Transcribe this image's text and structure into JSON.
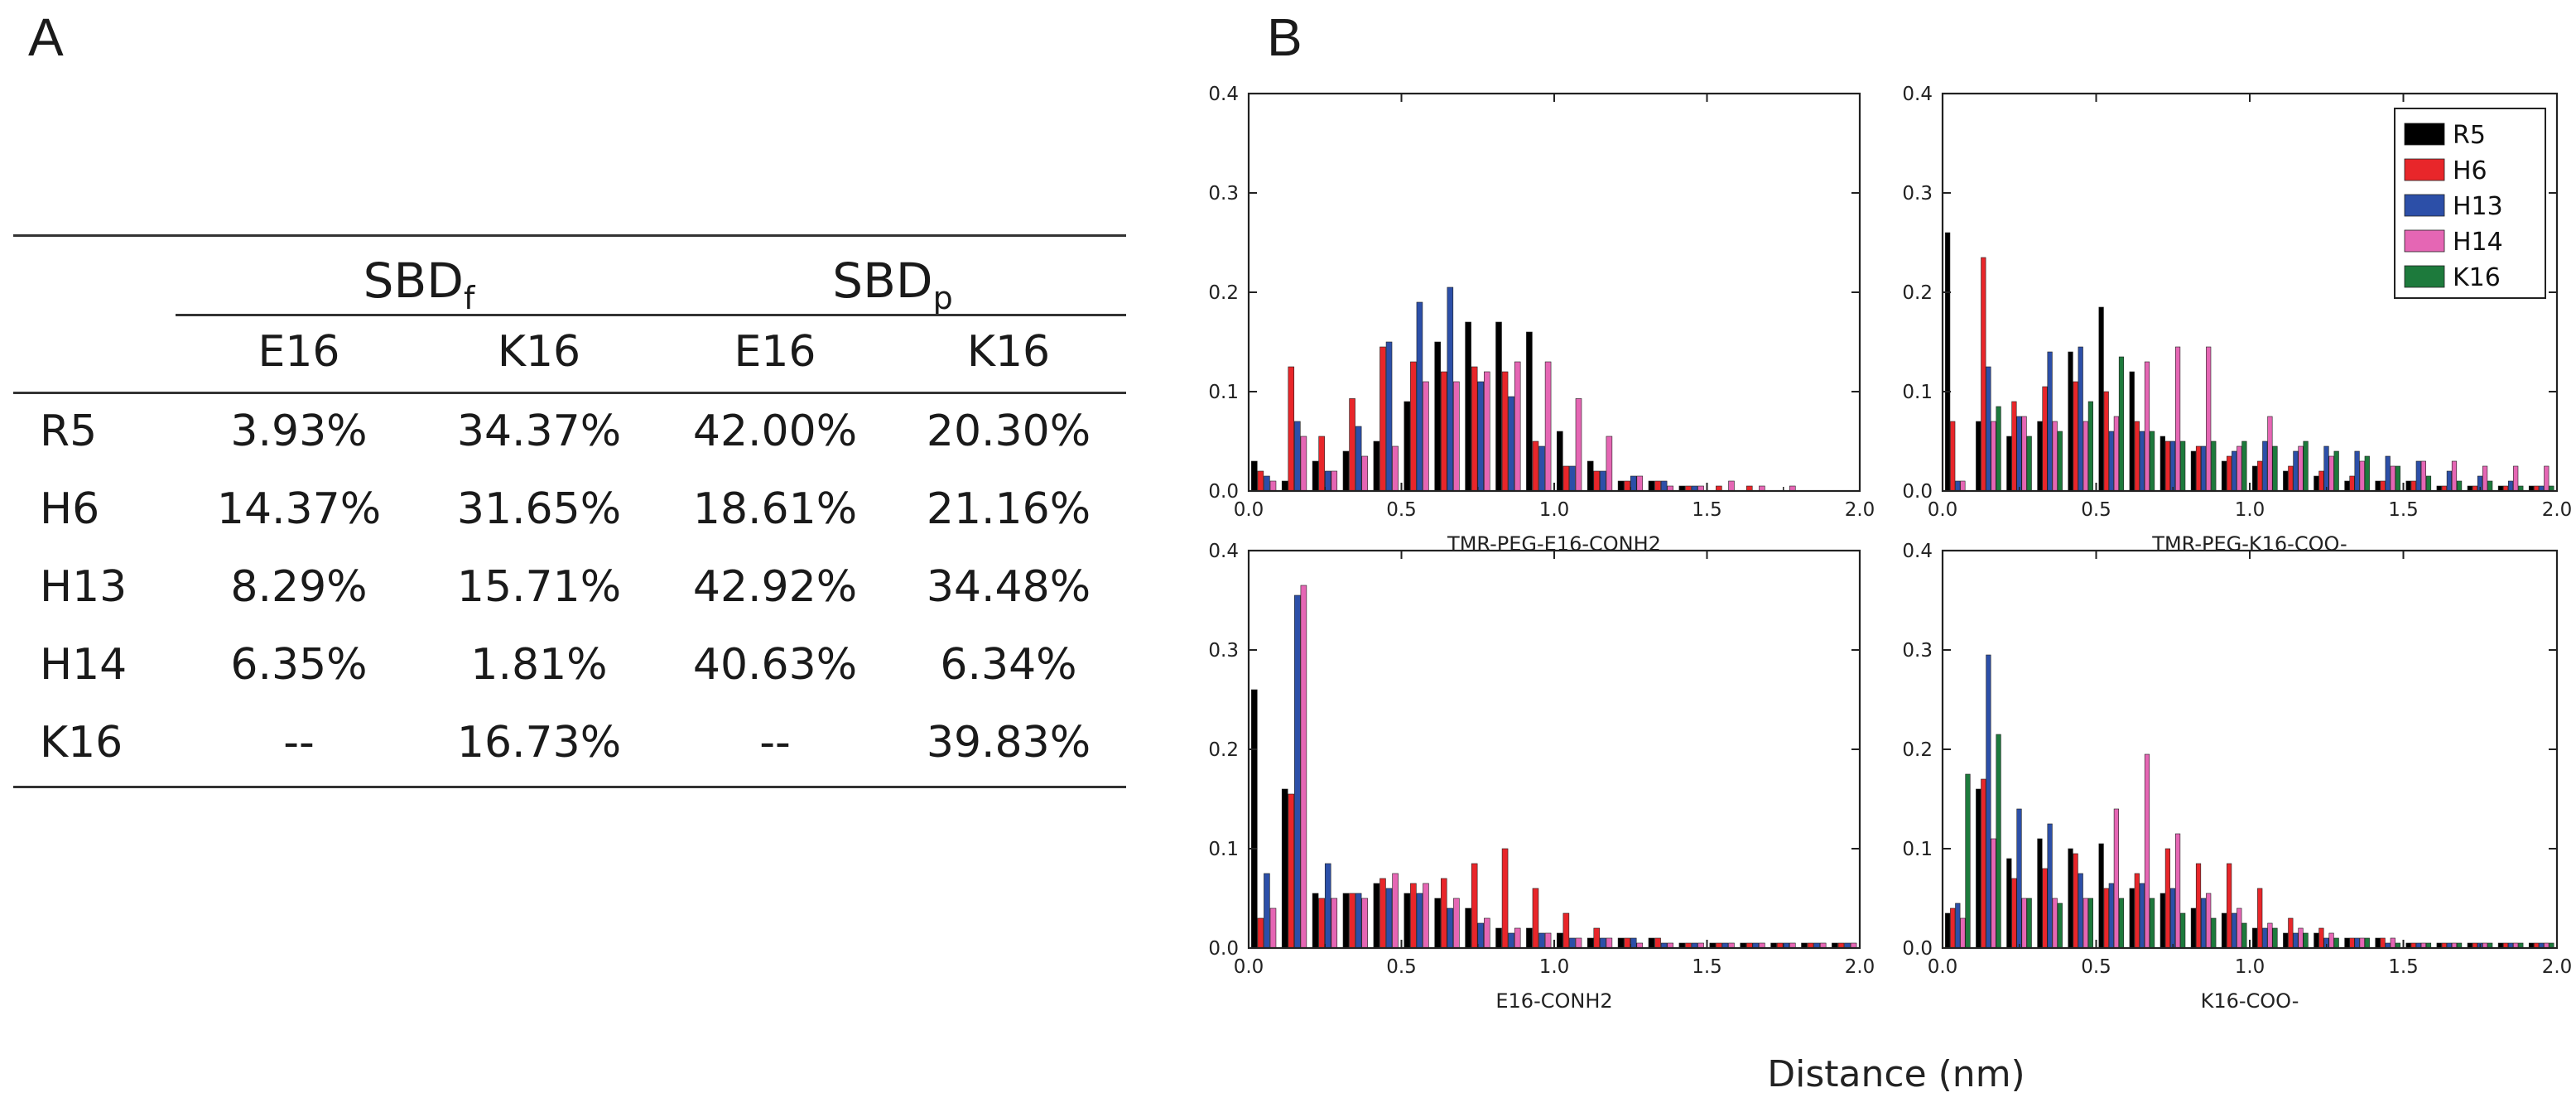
{
  "panels": {
    "a_label": "A",
    "b_label": "B"
  },
  "table": {
    "groups": [
      {
        "label": "SBD",
        "sub": "f"
      },
      {
        "label": "SBD",
        "sub": "p"
      }
    ],
    "columns": [
      "E16",
      "K16",
      "E16",
      "K16"
    ],
    "rows": [
      {
        "label": "R5",
        "values": [
          "3.93%",
          "34.37%",
          "42.00%",
          "20.30%"
        ]
      },
      {
        "label": "H6",
        "values": [
          "14.37%",
          "31.65%",
          "18.61%",
          "21.16%"
        ]
      },
      {
        "label": "H13",
        "values": [
          "8.29%",
          "15.71%",
          "42.92%",
          "34.48%"
        ]
      },
      {
        "label": "H14",
        "values": [
          "6.35%",
          "1.81%",
          "40.63%",
          "6.34%"
        ]
      },
      {
        "label": "K16",
        "values": [
          "--",
          "16.73%",
          "--",
          "39.83%"
        ]
      }
    ]
  },
  "colors": {
    "R5": "#000000",
    "H6": "#e8262a",
    "H13": "#2c4fa8",
    "H14": "#e566b4",
    "K16": "#1d7a3c"
  },
  "shared_xlabel": "Distance (nm)",
  "chart_data": [
    {
      "type": "bar",
      "title": "TMR-PEG-E16-CONH2",
      "xlim": [
        0,
        2
      ],
      "ylim": [
        0,
        0.4
      ],
      "xticks": [
        "0.0",
        "0.5",
        "1.0",
        "1.5",
        "2.0"
      ],
      "yticks": [
        "0.0",
        "0.1",
        "0.2",
        "0.3",
        "0.4"
      ],
      "x": [
        0.05,
        0.15,
        0.25,
        0.35,
        0.45,
        0.55,
        0.65,
        0.75,
        0.85,
        0.95,
        1.05,
        1.15,
        1.25,
        1.35,
        1.45,
        1.55,
        1.65,
        1.75,
        1.85,
        1.95
      ],
      "series": [
        {
          "name": "R5",
          "values": [
            0.03,
            0.01,
            0.03,
            0.04,
            0.05,
            0.09,
            0.15,
            0.17,
            0.17,
            0.16,
            0.06,
            0.03,
            0.01,
            0.01,
            0.005,
            0.0,
            0.0,
            0.0,
            0.0,
            0.0
          ]
        },
        {
          "name": "H6",
          "values": [
            0.02,
            0.125,
            0.055,
            0.093,
            0.145,
            0.13,
            0.12,
            0.125,
            0.12,
            0.05,
            0.025,
            0.02,
            0.01,
            0.01,
            0.005,
            0.005,
            0.005,
            0.0,
            0.0,
            0.0
          ]
        },
        {
          "name": "H13",
          "values": [
            0.015,
            0.07,
            0.02,
            0.065,
            0.15,
            0.19,
            0.205,
            0.11,
            0.095,
            0.045,
            0.025,
            0.02,
            0.015,
            0.01,
            0.005,
            0.0,
            0.0,
            0.0,
            0.0,
            0.0
          ]
        },
        {
          "name": "H14",
          "values": [
            0.01,
            0.055,
            0.02,
            0.035,
            0.045,
            0.11,
            0.11,
            0.12,
            0.13,
            0.13,
            0.093,
            0.055,
            0.015,
            0.005,
            0.005,
            0.01,
            0.005,
            0.005,
            0.0,
            0.0
          ]
        }
      ]
    },
    {
      "type": "bar",
      "title": "TMR-PEG-K16-COO-",
      "xlim": [
        0,
        2
      ],
      "ylim": [
        0,
        0.4
      ],
      "xticks": [
        "0.0",
        "0.5",
        "1.0",
        "1.5",
        "2.0"
      ],
      "yticks": [
        "0.0",
        "0.1",
        "0.2",
        "0.3",
        "0.4"
      ],
      "legend": [
        "R5",
        "H6",
        "H13",
        "H14",
        "K16"
      ],
      "legend_position": "top-right",
      "x": [
        0.05,
        0.15,
        0.25,
        0.35,
        0.45,
        0.55,
        0.65,
        0.75,
        0.85,
        0.95,
        1.05,
        1.15,
        1.25,
        1.35,
        1.45,
        1.55,
        1.65,
        1.75,
        1.85,
        1.95
      ],
      "series": [
        {
          "name": "R5",
          "values": [
            0.26,
            0.07,
            0.055,
            0.07,
            0.14,
            0.185,
            0.12,
            0.055,
            0.04,
            0.03,
            0.025,
            0.02,
            0.015,
            0.01,
            0.01,
            0.01,
            0.005,
            0.005,
            0.005,
            0.005
          ]
        },
        {
          "name": "H6",
          "values": [
            0.07,
            0.235,
            0.09,
            0.105,
            0.11,
            0.1,
            0.07,
            0.05,
            0.045,
            0.035,
            0.03,
            0.025,
            0.02,
            0.015,
            0.01,
            0.01,
            0.005,
            0.005,
            0.005,
            0.005
          ]
        },
        {
          "name": "H13",
          "values": [
            0.01,
            0.125,
            0.075,
            0.14,
            0.145,
            0.06,
            0.06,
            0.05,
            0.045,
            0.04,
            0.05,
            0.04,
            0.045,
            0.04,
            0.035,
            0.03,
            0.02,
            0.015,
            0.01,
            0.005
          ]
        },
        {
          "name": "H14",
          "values": [
            0.01,
            0.07,
            0.075,
            0.07,
            0.07,
            0.075,
            0.13,
            0.145,
            0.145,
            0.045,
            0.075,
            0.045,
            0.035,
            0.03,
            0.025,
            0.03,
            0.03,
            0.025,
            0.025,
            0.025
          ]
        },
        {
          "name": "K16",
          "values": [
            0.0,
            0.085,
            0.055,
            0.06,
            0.09,
            0.135,
            0.06,
            0.05,
            0.05,
            0.05,
            0.045,
            0.05,
            0.04,
            0.035,
            0.025,
            0.015,
            0.01,
            0.01,
            0.005,
            0.005
          ]
        }
      ]
    },
    {
      "type": "bar",
      "title": "E16-CONH2",
      "xlim": [
        0,
        2
      ],
      "ylim": [
        0,
        0.4
      ],
      "xticks": [
        "0.0",
        "0.5",
        "1.0",
        "1.5",
        "2.0"
      ],
      "yticks": [
        "0.0",
        "0.1",
        "0.2",
        "0.3",
        "0.4"
      ],
      "x": [
        0.05,
        0.15,
        0.25,
        0.35,
        0.45,
        0.55,
        0.65,
        0.75,
        0.85,
        0.95,
        1.05,
        1.15,
        1.25,
        1.35,
        1.45,
        1.55,
        1.65,
        1.75,
        1.85,
        1.95
      ],
      "series": [
        {
          "name": "R5",
          "values": [
            0.26,
            0.16,
            0.055,
            0.055,
            0.065,
            0.055,
            0.05,
            0.04,
            0.02,
            0.02,
            0.015,
            0.01,
            0.01,
            0.01,
            0.005,
            0.005,
            0.005,
            0.005,
            0.005,
            0.005
          ]
        },
        {
          "name": "H6",
          "values": [
            0.03,
            0.155,
            0.05,
            0.055,
            0.07,
            0.065,
            0.07,
            0.085,
            0.1,
            0.06,
            0.035,
            0.02,
            0.01,
            0.01,
            0.005,
            0.005,
            0.005,
            0.005,
            0.005,
            0.005
          ]
        },
        {
          "name": "H13",
          "values": [
            0.075,
            0.355,
            0.085,
            0.055,
            0.06,
            0.055,
            0.04,
            0.025,
            0.015,
            0.015,
            0.01,
            0.01,
            0.01,
            0.005,
            0.005,
            0.005,
            0.005,
            0.005,
            0.005,
            0.005
          ]
        },
        {
          "name": "H14",
          "values": [
            0.04,
            0.365,
            0.05,
            0.05,
            0.075,
            0.065,
            0.05,
            0.03,
            0.02,
            0.015,
            0.01,
            0.01,
            0.005,
            0.005,
            0.005,
            0.005,
            0.005,
            0.005,
            0.005,
            0.005
          ]
        }
      ]
    },
    {
      "type": "bar",
      "title": "K16-COO-",
      "xlim": [
        0,
        2
      ],
      "ylim": [
        0,
        0.4
      ],
      "xticks": [
        "0.0",
        "0.5",
        "1.0",
        "1.5",
        "2.0"
      ],
      "yticks": [
        "0.0",
        "0.1",
        "0.2",
        "0.3",
        "0.4"
      ],
      "x": [
        0.05,
        0.15,
        0.25,
        0.35,
        0.45,
        0.55,
        0.65,
        0.75,
        0.85,
        0.95,
        1.05,
        1.15,
        1.25,
        1.35,
        1.45,
        1.55,
        1.65,
        1.75,
        1.85,
        1.95
      ],
      "series": [
        {
          "name": "R5",
          "values": [
            0.035,
            0.16,
            0.09,
            0.11,
            0.1,
            0.105,
            0.06,
            0.055,
            0.04,
            0.035,
            0.02,
            0.015,
            0.015,
            0.01,
            0.01,
            0.005,
            0.005,
            0.005,
            0.005,
            0.005
          ]
        },
        {
          "name": "H6",
          "values": [
            0.04,
            0.17,
            0.07,
            0.08,
            0.095,
            0.06,
            0.075,
            0.1,
            0.085,
            0.085,
            0.06,
            0.03,
            0.02,
            0.01,
            0.01,
            0.005,
            0.005,
            0.005,
            0.005,
            0.005
          ]
        },
        {
          "name": "H13",
          "values": [
            0.045,
            0.295,
            0.14,
            0.125,
            0.075,
            0.065,
            0.065,
            0.06,
            0.05,
            0.035,
            0.02,
            0.015,
            0.01,
            0.01,
            0.005,
            0.005,
            0.005,
            0.005,
            0.005,
            0.005
          ]
        },
        {
          "name": "H14",
          "values": [
            0.03,
            0.11,
            0.05,
            0.05,
            0.05,
            0.14,
            0.195,
            0.115,
            0.055,
            0.04,
            0.025,
            0.02,
            0.015,
            0.01,
            0.01,
            0.005,
            0.005,
            0.005,
            0.005,
            0.005
          ]
        },
        {
          "name": "K16",
          "values": [
            0.175,
            0.215,
            0.05,
            0.045,
            0.05,
            0.05,
            0.05,
            0.035,
            0.03,
            0.025,
            0.02,
            0.015,
            0.01,
            0.01,
            0.005,
            0.005,
            0.005,
            0.005,
            0.005,
            0.005
          ]
        }
      ]
    }
  ]
}
